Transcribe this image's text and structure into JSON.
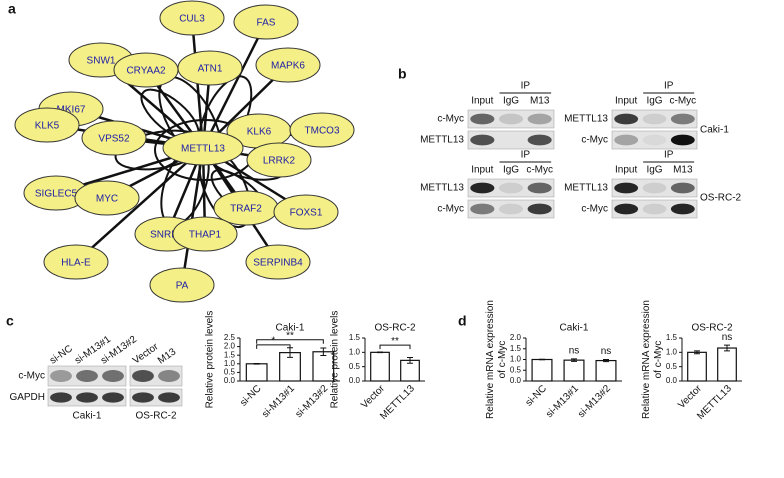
{
  "panel_labels": [
    "a",
    "b",
    "c",
    "d"
  ],
  "network": {
    "center": "METTL13",
    "nodes": [
      "SNW1",
      "CUL3",
      "FAS",
      "CRYAA2",
      "ATN1",
      "MAPK6",
      "MKI67",
      "KLK6",
      "KLK5",
      "VPS52",
      "TMCO3",
      "LRRK2",
      "SIGLEC5",
      "MYC",
      "TRAF2",
      "FOXS1",
      "SNRPA",
      "THAP1",
      "SERPINB4",
      "HLA-E",
      "PA"
    ]
  },
  "blots_b": {
    "groups": [
      {
        "ip": "IP",
        "columns": [
          "Input",
          "IgG",
          "M13"
        ],
        "rows": [
          "c-Myc",
          "METTL13"
        ]
      },
      {
        "ip": "IP",
        "columns": [
          "Input",
          "IgG",
          "c-Myc"
        ],
        "rows": [
          "METTL13",
          "c-Myc"
        ]
      },
      {
        "ip": "IP",
        "columns": [
          "Input",
          "IgG",
          "c-Myc"
        ],
        "rows": [
          "METTL13",
          "c-Myc"
        ]
      },
      {
        "ip": "IP",
        "columns": [
          "Input",
          "IgG",
          "M13"
        ],
        "rows": [
          "METTL13",
          "c-Myc"
        ]
      }
    ],
    "cell_lines": [
      "Caki-1",
      "OS-RC-2"
    ]
  },
  "blot_c": {
    "columns": [
      "si-NC",
      "si-M13#1",
      "si-M13#2",
      "Vector",
      "M13"
    ],
    "rows": [
      "c-Myc",
      "GAPDH"
    ],
    "cell_lines": [
      "Caki-1",
      "OS-RC-2"
    ]
  },
  "chart_data": [
    {
      "type": "bar",
      "title": "Caki-1",
      "y_label": "Relative protein levels",
      "categories": [
        "si-NC",
        "si-M13#1",
        "si-M13#2"
      ],
      "values": [
        1.0,
        1.65,
        1.7
      ],
      "errors": [
        0.02,
        0.28,
        0.22
      ],
      "color": "#ffffff",
      "ylim": [
        0,
        2.5
      ],
      "yticks": [
        {
          "value": 0,
          "label": "0.0"
        },
        {
          "value": 0.5,
          "label": "0.5"
        },
        {
          "value": 1,
          "label": "1.0"
        },
        {
          "value": 1.5,
          "label": "1.5"
        },
        {
          "value": 2,
          "label": "2.0"
        },
        {
          "value": 2.5,
          "label": "2.5"
        }
      ],
      "annotations": [
        "*",
        "**"
      ]
    },
    {
      "type": "bar",
      "title": "OS-RC-2",
      "y_label": "Relative protein levels",
      "categories": [
        "Vector",
        "METTL13"
      ],
      "values": [
        1.0,
        0.72
      ],
      "errors": [
        0.01,
        0.1
      ],
      "color": "#ffffff",
      "ylim": [
        0,
        1.5
      ],
      "yticks": [
        {
          "value": 0,
          "label": "0.0"
        },
        {
          "value": 0.5,
          "label": "0.5"
        },
        {
          "value": 1,
          "label": "1.0"
        },
        {
          "value": 1.5,
          "label": "1.5"
        }
      ],
      "annotations": [
        "**"
      ]
    },
    {
      "type": "bar",
      "title": "Caki-1",
      "y_label": "Relative mRNA expression of c-Myc",
      "categories": [
        "si-NC",
        "si-M13#1",
        "si-M13#2"
      ],
      "values": [
        1.0,
        0.97,
        0.95
      ],
      "errors": [
        0.01,
        0.06,
        0.05
      ],
      "color": "#ffffff",
      "ylim": [
        0,
        2.0
      ],
      "yticks": [
        {
          "value": 0,
          "label": "0.0"
        },
        {
          "value": 0.5,
          "label": "0.5"
        },
        {
          "value": 1,
          "label": "1.0"
        },
        {
          "value": 1.5,
          "label": "1.5"
        },
        {
          "value": 2,
          "label": "2.0"
        }
      ],
      "annotations": [
        "ns",
        "ns"
      ]
    },
    {
      "type": "bar",
      "title": "OS-RC-2",
      "y_label": "Relative mRNA expression of c-Myc",
      "categories": [
        "Vector",
        "METTL13"
      ],
      "values": [
        1.0,
        1.15
      ],
      "errors": [
        0.05,
        0.1
      ],
      "color": "#ffffff",
      "ylim": [
        0,
        1.5
      ],
      "yticks": [
        {
          "value": 0,
          "label": "0.0"
        },
        {
          "value": 0.5,
          "label": "0.5"
        },
        {
          "value": 1,
          "label": "1.0"
        },
        {
          "value": 1.5,
          "label": "1.5"
        }
      ],
      "annotations": [
        "ns"
      ]
    }
  ]
}
